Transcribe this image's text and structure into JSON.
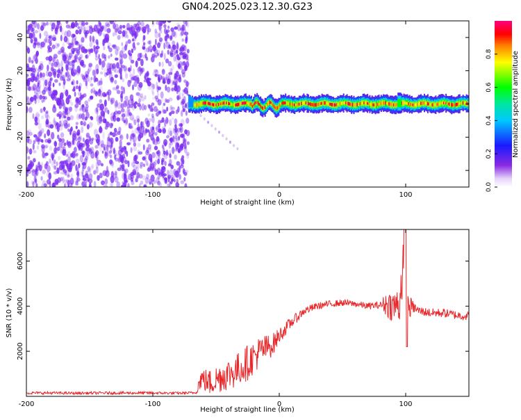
{
  "figure_title": "GN04.2025.023.12.30.G23",
  "colors": {
    "snr_line": "#e8272a",
    "spectrogram_noise": "#7a2cf0",
    "axis": "#000000"
  },
  "chart_data": [
    {
      "type": "heatmap",
      "title": "",
      "xlabel": "Height of straight line (km)",
      "ylabel": "Frequency (Hz)",
      "xlim": [
        -200,
        150
      ],
      "ylim": [
        -50,
        50
      ],
      "xticks": [
        -200,
        -100,
        0,
        100
      ],
      "yticks": [
        -40,
        -20,
        0,
        20,
        40
      ],
      "colorbar": {
        "label": "Normalized spectral amplitude",
        "range": [
          0,
          1
        ],
        "ticks": [
          0.0,
          0.2,
          0.4,
          0.6,
          0.8
        ],
        "tick_labels": [
          "0.0",
          "0.2",
          "0.4",
          "0.6",
          "0.8"
        ],
        "colormap": "rainbow (white-violet-blue-cyan-green-yellow-red-magenta)"
      },
      "features": {
        "noise_region_x": [
          -200,
          -72
        ],
        "noise_amplitude_range": [
          0.0,
          0.15
        ],
        "signal_band_x": [
          -72,
          150
        ],
        "signal_center_frequency": 0,
        "signal_peak_amplitude": 0.95,
        "signal_band_halfwidth_hz": 3,
        "doppler_tail": {
          "x": [
            -65,
            -33
          ],
          "frequency": [
            -5,
            -27
          ]
        },
        "frequency_spike": {
          "x": 95,
          "frequency_range": [
            -5,
            7
          ]
        }
      }
    },
    {
      "type": "line",
      "title": "",
      "xlabel": "Height of straight line (km)",
      "ylabel": "SNR (10 * v/v)",
      "xlim": [
        -200,
        150
      ],
      "ylim": [
        0,
        7400
      ],
      "xticks": [
        -200,
        -100,
        0,
        100
      ],
      "yticks": [
        2000,
        4000,
        6000
      ],
      "series": [
        {
          "name": "",
          "x": [
            -200,
            -180,
            -160,
            -140,
            -120,
            -100,
            -80,
            -66,
            -62,
            -55,
            -45,
            -35,
            -25,
            -15,
            -5,
            0,
            10,
            20,
            30,
            40,
            50,
            60,
            70,
            80,
            85,
            90,
            95,
            98,
            100,
            102,
            105,
            110,
            120,
            130,
            140,
            150
          ],
          "y": [
            150,
            150,
            140,
            150,
            150,
            150,
            140,
            160,
            800,
            600,
            900,
            1100,
            1500,
            2000,
            2300,
            2700,
            3300,
            3800,
            4000,
            4100,
            4150,
            4100,
            4000,
            4050,
            4100,
            4000,
            4050,
            6000,
            2600,
            3900,
            4000,
            3800,
            3700,
            3700,
            3600,
            3550
          ],
          "noise": [
            60,
            60,
            60,
            60,
            60,
            60,
            60,
            60,
            500,
            600,
            700,
            750,
            800,
            700,
            500,
            350,
            250,
            180,
            160,
            150,
            150,
            150,
            150,
            160,
            600,
            700,
            900,
            1500,
            1000,
            700,
            300,
            200,
            200,
            200,
            200,
            200
          ]
        }
      ]
    }
  ]
}
